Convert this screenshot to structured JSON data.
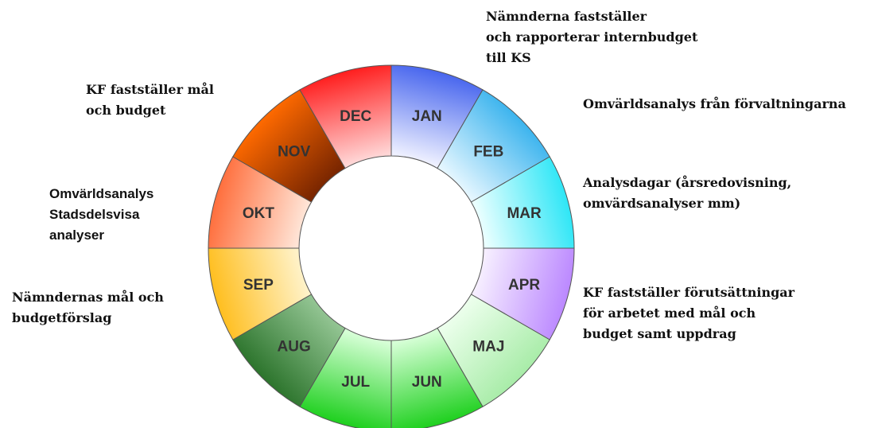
{
  "wheel": {
    "months": [
      "JAN",
      "FEB",
      "MAR",
      "APR",
      "MAJ",
      "JUN",
      "JUL",
      "AUG",
      "SEP",
      "OKT",
      "NOV",
      "DEC"
    ]
  },
  "annotations": [
    {
      "lines": [
        "Nämnderna fastställer",
        "och rapporterar internbudget",
        "till KS"
      ]
    },
    {
      "lines": [
        "Omvärldsanalys från förvaltningarna"
      ]
    },
    {
      "lines": [
        "Analysdagar (årsredovisning,",
        "omvärdsanalyser  mm)"
      ]
    },
    {
      "lines": [
        "KF fastställer förutsättningar",
        "för arbetet med mål och",
        "budget samt uppdrag"
      ]
    },
    {
      "lines": [
        "KF fastställer mål",
        "och budget"
      ]
    },
    {
      "lines": [
        "Omvärldsanalys",
        "Stadsdelsvisa",
        "analyser"
      ]
    },
    {
      "lines": [
        "Nämndernas mål och",
        "budgetförslag"
      ]
    }
  ]
}
